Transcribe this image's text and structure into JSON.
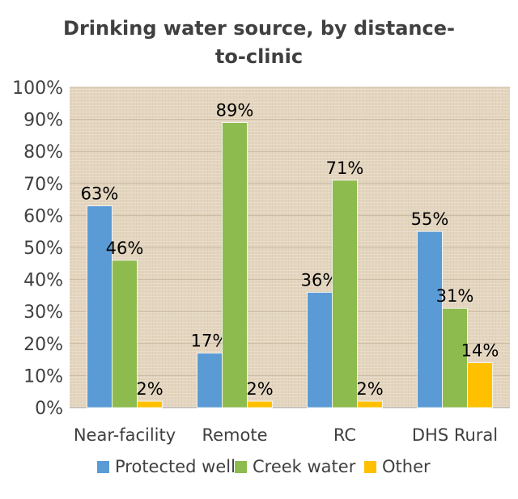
{
  "chart_data": {
    "type": "bar",
    "title": "Drinking water source, by distance-to-clinic",
    "categories": [
      "Near-facility",
      "Remote",
      "RC",
      "DHS Rural"
    ],
    "series": [
      {
        "name": "Protected well",
        "values": [
          63,
          17,
          36,
          55
        ],
        "labels": [
          "63%",
          "17%",
          "36%",
          "55%"
        ],
        "color": "#5b9bd5"
      },
      {
        "name": "Creek water",
        "values": [
          46,
          89,
          71,
          31
        ],
        "labels": [
          "46%",
          "89%",
          "71%",
          "31%"
        ],
        "color": "#8dbb4e"
      },
      {
        "name": "Other",
        "values": [
          2,
          2,
          2,
          14
        ],
        "labels": [
          "2%",
          "2%",
          "2%",
          "14%"
        ],
        "color": "#ffc000"
      }
    ],
    "ylim": [
      0,
      100
    ],
    "yticks": [
      "0%",
      "10%",
      "20%",
      "30%",
      "40%",
      "50%",
      "60%",
      "70%",
      "80%",
      "90%",
      "100%"
    ],
    "grid": true,
    "legend": "bottom",
    "plot_background": "#e5d8c2"
  }
}
